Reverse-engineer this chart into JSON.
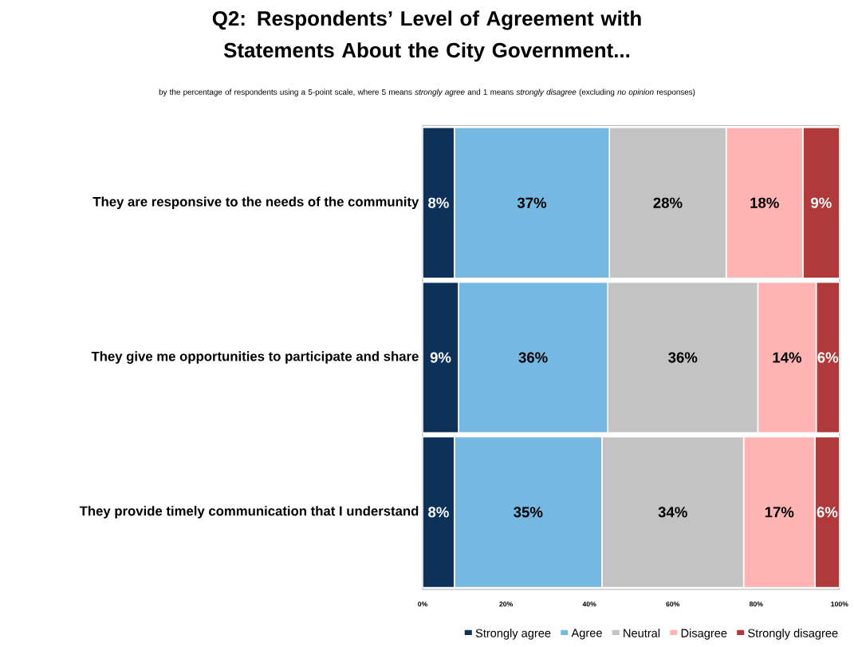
{
  "chart_data": {
    "type": "bar",
    "orientation": "horizontal",
    "stacked": true,
    "title": "Q2: Respondents’ Level of Agreement with Statements About the City Government...",
    "subtitle": "by the percentage of respondents using a 5-point scale, where 5 means *strongly agree* and 1 means *strongly disagree* (excluding *no opinion* responses)",
    "categories": [
      "They are responsive to the needs of the community",
      "They give me opportunities to participate and share",
      "They provide timely communication that I understand"
    ],
    "series": [
      {
        "name": "Strongly agree",
        "color": "#0d3158",
        "values": [
          7.6,
          8.6,
          7.6
        ],
        "value_labels": [
          "8%",
          "9%",
          "8%"
        ]
      },
      {
        "name": "Agree",
        "color": "#75b9e3",
        "values": [
          37.2,
          35.8,
          35.4
        ],
        "value_labels": [
          "37%",
          "36%",
          "35%"
        ]
      },
      {
        "name": "Neutral",
        "color": "#c3c3c3",
        "values": [
          28.0,
          36.0,
          34.0
        ],
        "value_labels": [
          "28%",
          "36%",
          "34%"
        ]
      },
      {
        "name": "Disagree",
        "color": "#ffb3b3",
        "values": [
          18.4,
          14.0,
          17.1
        ],
        "value_labels": [
          "18%",
          "14%",
          "17%"
        ]
      },
      {
        "name": "Strongly disagree",
        "color": "#b03a3a",
        "values": [
          8.8,
          5.6,
          5.9
        ],
        "value_labels": [
          "9%",
          "6%",
          "6%"
        ]
      }
    ],
    "xlim": [
      0,
      100
    ],
    "xticks": [
      {
        "value": 0,
        "label": "0%"
      },
      {
        "value": 20,
        "label": "20%"
      },
      {
        "value": 40,
        "label": "40%"
      },
      {
        "value": 60,
        "label": "60%"
      },
      {
        "value": 80,
        "label": "80%"
      },
      {
        "value": 100,
        "label": "100%"
      }
    ],
    "legend": "bottom"
  }
}
